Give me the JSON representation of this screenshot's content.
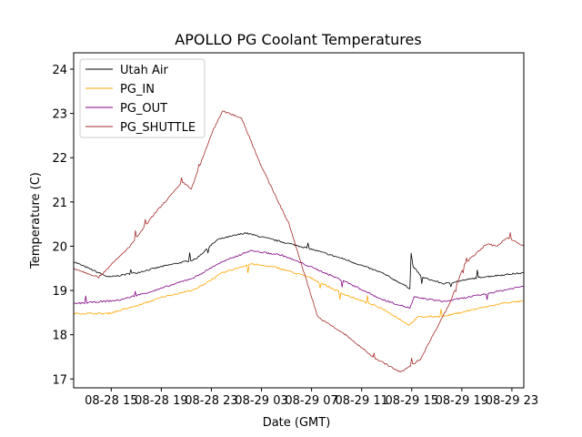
{
  "chart_data": {
    "type": "line",
    "title": "APOLLO PG Coolant Temperatures",
    "xlabel": "Date (GMT)",
    "ylabel": "Temperature (C)",
    "x_units": "hours since 08-28 00:00 GMT",
    "xlim": [
      12.0,
      47.95
    ],
    "ylim": [
      16.8,
      24.37
    ],
    "grid": false,
    "legend_position": "top-left",
    "x_ticks": [
      {
        "value": 15,
        "label": "08-28 15"
      },
      {
        "value": 19,
        "label": "08-28 19"
      },
      {
        "value": 23,
        "label": "08-28 23"
      },
      {
        "value": 27,
        "label": "08-29 03"
      },
      {
        "value": 31,
        "label": "08-29 07"
      },
      {
        "value": 35,
        "label": "08-29 11"
      },
      {
        "value": 39,
        "label": "08-29 15"
      },
      {
        "value": 43,
        "label": "08-29 19"
      },
      {
        "value": 47,
        "label": "08-29 23"
      }
    ],
    "y_ticks": [
      {
        "value": 17,
        "label": "17"
      },
      {
        "value": 18,
        "label": "18"
      },
      {
        "value": 19,
        "label": "19"
      },
      {
        "value": 20,
        "label": "20"
      },
      {
        "value": 21,
        "label": "21"
      },
      {
        "value": 22,
        "label": "22"
      },
      {
        "value": 23,
        "label": "23"
      },
      {
        "value": 24,
        "label": "24"
      }
    ],
    "series": [
      {
        "name": "Utah Air",
        "color": "#000000",
        "x": [
          12.0,
          14.8,
          17.0,
          19.2,
          21.7,
          23.5,
          25.7,
          28.6,
          30.8,
          33.7,
          36.6,
          38.85,
          38.95,
          39.1,
          39.8,
          41.6,
          44.5,
          47.95
        ],
        "y": [
          19.65,
          19.3,
          19.4,
          19.55,
          19.7,
          20.15,
          20.3,
          20.1,
          19.95,
          19.7,
          19.4,
          19.05,
          19.85,
          19.55,
          19.3,
          19.15,
          19.3,
          19.4
        ]
      },
      {
        "name": "PG_IN",
        "color": "#ffa500",
        "x": [
          12.0,
          14.8,
          17.0,
          19.2,
          21.7,
          23.9,
          26.1,
          28.2,
          30.8,
          33.7,
          36.6,
          38.8,
          39.5,
          41.6,
          43.8,
          46.4,
          47.95
        ],
        "y": [
          18.48,
          18.48,
          18.65,
          18.86,
          19.02,
          19.4,
          19.6,
          19.52,
          19.3,
          18.9,
          18.6,
          18.22,
          18.4,
          18.42,
          18.56,
          18.72,
          18.76
        ]
      },
      {
        "name": "PG_OUT",
        "color": "#800080",
        "x": [
          12.0,
          15.6,
          18.5,
          21.7,
          23.5,
          26.1,
          28.6,
          30.8,
          33.7,
          36.6,
          38.85,
          39.2,
          41.6,
          44.5,
          47.95
        ],
        "y": [
          18.7,
          18.78,
          19.0,
          19.3,
          19.6,
          19.9,
          19.8,
          19.55,
          19.2,
          18.8,
          18.6,
          18.85,
          18.75,
          18.9,
          19.1
        ]
      },
      {
        "name": "PG_SHUTTLE",
        "color": "#a52a2a",
        "x": [
          12.0,
          14.0,
          16.5,
          18.5,
          20.7,
          21.4,
          23.1,
          23.9,
          25.4,
          27.0,
          29.2,
          31.5,
          33.7,
          35.9,
          38.1,
          39.7,
          42.1,
          43.2,
          45.0,
          45.8,
          46.6,
          47.95
        ],
        "y": [
          19.5,
          19.3,
          20.0,
          20.75,
          21.45,
          21.3,
          22.6,
          23.05,
          22.9,
          21.8,
          20.5,
          18.4,
          18.0,
          17.5,
          17.15,
          17.45,
          18.75,
          19.6,
          20.05,
          20.0,
          20.2,
          20.0
        ]
      }
    ]
  }
}
